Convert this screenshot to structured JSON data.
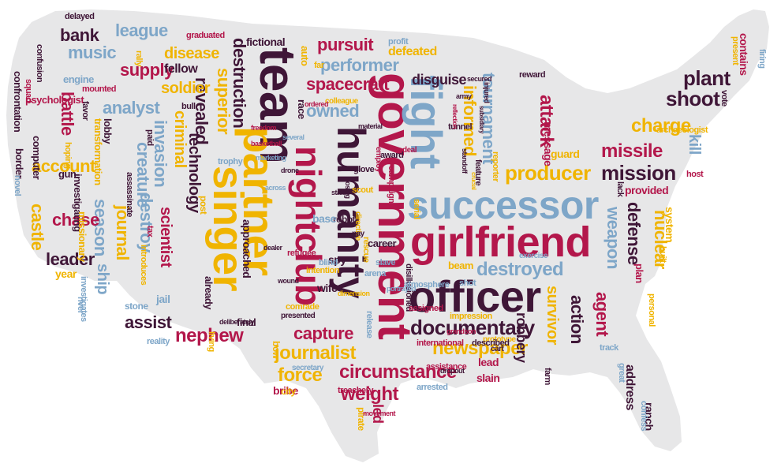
{
  "colors": {
    "background": "#ffffff",
    "map_fill": "#e7e7e8",
    "palette": {
      "crimson": "#b3174b",
      "blue": "#7ea6c8",
      "gold": "#f0b400",
      "plum": "#3f1637"
    }
  },
  "words": [
    {
      "text": "government",
      "color": "crimson"
    },
    {
      "text": "team",
      "color": "plum"
    },
    {
      "text": "fight",
      "color": "blue"
    },
    {
      "text": "partner",
      "color": "gold"
    },
    {
      "text": "successor",
      "color": "blue"
    },
    {
      "text": "girlfriend",
      "color": "crimson"
    },
    {
      "text": "officer",
      "color": "plum"
    },
    {
      "text": "singer",
      "color": "gold"
    },
    {
      "text": "humanity",
      "color": "plum"
    },
    {
      "text": "nightclub",
      "color": "crimson"
    },
    {
      "text": "documentary",
      "color": "plum"
    },
    {
      "text": "circumstance",
      "color": "crimson"
    },
    {
      "text": "newspaper",
      "color": "gold"
    },
    {
      "text": "journalist",
      "color": "gold"
    },
    {
      "text": "weight",
      "color": "crimson"
    },
    {
      "text": "force",
      "color": "gold"
    },
    {
      "text": "capture",
      "color": "crimson"
    },
    {
      "text": "nephew",
      "color": "crimson"
    },
    {
      "text": "assist",
      "color": "plum"
    },
    {
      "text": "destroyed",
      "color": "blue"
    },
    {
      "text": "mission",
      "color": "plum"
    },
    {
      "text": "producer",
      "color": "gold"
    },
    {
      "text": "charge",
      "color": "gold"
    },
    {
      "text": "missile",
      "color": "crimson"
    },
    {
      "text": "shoot",
      "color": "plum"
    },
    {
      "text": "plant",
      "color": "plum"
    },
    {
      "text": "attack",
      "color": "crimson"
    },
    {
      "text": "tournament",
      "color": "blue"
    },
    {
      "text": "informed",
      "color": "gold"
    },
    {
      "text": "owned",
      "color": "blue"
    },
    {
      "text": "spacecraft",
      "color": "crimson"
    },
    {
      "text": "performer",
      "color": "blue"
    },
    {
      "text": "pursuit",
      "color": "crimson"
    },
    {
      "text": "destruction",
      "color": "plum"
    },
    {
      "text": "superior",
      "color": "gold"
    },
    {
      "text": "revealed",
      "color": "plum"
    },
    {
      "text": "technology",
      "color": "plum"
    },
    {
      "text": "criminal",
      "color": "gold"
    },
    {
      "text": "invasion",
      "color": "blue"
    },
    {
      "text": "creature",
      "color": "blue"
    },
    {
      "text": "destroy",
      "color": "blue"
    },
    {
      "text": "scientist",
      "color": "crimson"
    },
    {
      "text": "journal",
      "color": "gold"
    },
    {
      "text": "season",
      "color": "blue"
    },
    {
      "text": "ship",
      "color": "blue"
    },
    {
      "text": "leader",
      "color": "plum"
    },
    {
      "text": "chase",
      "color": "crimson"
    },
    {
      "text": "castle",
      "color": "gold"
    },
    {
      "text": "account",
      "color": "gold"
    },
    {
      "text": "battle",
      "color": "crimson"
    },
    {
      "text": "analyst",
      "color": "blue"
    },
    {
      "text": "soldier",
      "color": "gold"
    },
    {
      "text": "supply",
      "color": "crimson"
    },
    {
      "text": "disease",
      "color": "gold"
    },
    {
      "text": "music",
      "color": "blue"
    },
    {
      "text": "league",
      "color": "blue"
    },
    {
      "text": "bank",
      "color": "plum"
    },
    {
      "text": "fellow",
      "color": "plum"
    },
    {
      "text": "defeated",
      "color": "gold"
    },
    {
      "text": "disguise",
      "color": "plum"
    },
    {
      "text": "weapon",
      "color": "blue"
    },
    {
      "text": "defense",
      "color": "plum"
    },
    {
      "text": "nuclear",
      "color": "gold"
    },
    {
      "text": "agent",
      "color": "crimson"
    },
    {
      "text": "action",
      "color": "plum"
    },
    {
      "text": "survivor",
      "color": "gold"
    },
    {
      "text": "robbery",
      "color": "plum"
    },
    {
      "text": "kill",
      "color": "blue"
    },
    {
      "text": "provided",
      "color": "crimson"
    },
    {
      "text": "system",
      "color": "gold"
    },
    {
      "text": "address",
      "color": "plum"
    },
    {
      "text": "ranch",
      "color": "plum"
    },
    {
      "text": "contains",
      "color": "crimson"
    },
    {
      "text": "slain",
      "color": "crimson"
    },
    {
      "text": "lead",
      "color": "crimson"
    },
    {
      "text": "led",
      "color": "crimson"
    },
    {
      "text": "bribe",
      "color": "crimson"
    },
    {
      "text": "approached",
      "color": "plum"
    },
    {
      "text": "fictional",
      "color": "plum"
    },
    {
      "text": "auto",
      "color": "gold"
    },
    {
      "text": "psychologist",
      "color": "crimson"
    },
    {
      "text": "confrontation",
      "color": "plum"
    },
    {
      "text": "computer",
      "color": "plum"
    },
    {
      "text": "border",
      "color": "plum"
    },
    {
      "text": "engine",
      "color": "blue"
    },
    {
      "text": "gun",
      "color": "plum"
    },
    {
      "text": "lobby",
      "color": "plum"
    },
    {
      "text": "investigating",
      "color": "plum"
    },
    {
      "text": "missionary",
      "color": "gold"
    },
    {
      "text": "transformation",
      "color": "gold"
    },
    {
      "text": "year",
      "color": "gold"
    },
    {
      "text": "stone",
      "color": "blue"
    },
    {
      "text": "jail",
      "color": "blue"
    },
    {
      "text": "already",
      "color": "plum"
    },
    {
      "text": "spy",
      "color": "plum"
    },
    {
      "text": "wife",
      "color": "plum"
    },
    {
      "text": "robot",
      "color": "plum"
    },
    {
      "text": "base",
      "color": "blue"
    },
    {
      "text": "career",
      "color": "plum"
    },
    {
      "text": "beam",
      "color": "gold"
    },
    {
      "text": "guard",
      "color": "gold"
    },
    {
      "text": "message",
      "color": "crimson"
    },
    {
      "text": "race",
      "color": "plum"
    },
    {
      "text": "post",
      "color": "gold"
    },
    {
      "text": "final",
      "color": "plum"
    },
    {
      "text": "bow",
      "color": "gold"
    },
    {
      "text": "city",
      "color": "gold"
    },
    {
      "text": "pirate",
      "color": "gold"
    },
    {
      "text": "arrested",
      "color": "blue"
    },
    {
      "text": "farm",
      "color": "plum"
    },
    {
      "text": "reward",
      "color": "plum"
    },
    {
      "text": "delayed",
      "color": "plum"
    },
    {
      "text": "graduated",
      "color": "crimson"
    },
    {
      "text": "profit",
      "color": "blue"
    },
    {
      "text": "favor",
      "color": "plum"
    },
    {
      "text": "hoping",
      "color": "gold"
    },
    {
      "text": "novel",
      "color": "blue"
    },
    {
      "text": "squad",
      "color": "crimson"
    },
    {
      "text": "confusion",
      "color": "plum"
    },
    {
      "text": "mounted",
      "color": "crimson"
    },
    {
      "text": "rally",
      "color": "gold"
    },
    {
      "text": "bull",
      "color": "plum"
    },
    {
      "text": "paid",
      "color": "plum"
    },
    {
      "text": "assassinate",
      "color": "plum"
    },
    {
      "text": "introduces",
      "color": "gold"
    },
    {
      "text": "tax",
      "color": "crimson"
    },
    {
      "text": "investigates",
      "color": "blue"
    },
    {
      "text": "river",
      "color": "blue"
    },
    {
      "text": "trophy",
      "color": "blue"
    },
    {
      "text": "colleague",
      "color": "gold"
    },
    {
      "text": "archaeologist",
      "color": "gold"
    },
    {
      "text": "vote",
      "color": "plum"
    },
    {
      "text": "host",
      "color": "crimson"
    },
    {
      "text": "present",
      "color": "gold"
    },
    {
      "text": "firing",
      "color": "blue"
    },
    {
      "text": "treachery",
      "color": "crimson"
    },
    {
      "text": "secretary",
      "color": "blue"
    },
    {
      "text": "assistance",
      "color": "crimson"
    },
    {
      "text": "cart",
      "color": "plum"
    },
    {
      "text": "prototype",
      "color": "gold"
    },
    {
      "text": "described",
      "color": "plum"
    },
    {
      "text": "international",
      "color": "crimson"
    },
    {
      "text": "track",
      "color": "blue"
    },
    {
      "text": "great",
      "color": "blue"
    },
    {
      "text": "confess",
      "color": "blue"
    },
    {
      "text": "exercise",
      "color": "blue"
    },
    {
      "text": "reporter",
      "color": "gold"
    },
    {
      "text": "feature",
      "color": "plum"
    },
    {
      "text": "standoff",
      "color": "plum"
    },
    {
      "text": "tunnel",
      "color": "plum"
    },
    {
      "text": "army",
      "color": "plum"
    },
    {
      "text": "deal",
      "color": "crimson"
    },
    {
      "text": "campaign",
      "color": "crimson"
    },
    {
      "text": "award",
      "color": "plum"
    },
    {
      "text": "scout",
      "color": "gold"
    },
    {
      "text": "glove",
      "color": "plum"
    },
    {
      "text": "employ",
      "color": "crimson"
    },
    {
      "text": "disillusioned",
      "color": "plum"
    },
    {
      "text": "slave",
      "color": "blue"
    },
    {
      "text": "arena",
      "color": "blue"
    },
    {
      "text": "atmosphere",
      "color": "blue"
    },
    {
      "text": "assigned",
      "color": "crimson"
    },
    {
      "text": "shot",
      "color": "blue"
    },
    {
      "text": "impression",
      "color": "gold"
    },
    {
      "text": "intention",
      "color": "gold"
    },
    {
      "text": "refugee",
      "color": "crimson"
    },
    {
      "text": "blind",
      "color": "blue"
    },
    {
      "text": "comrade",
      "color": "gold"
    },
    {
      "text": "presented",
      "color": "plum"
    },
    {
      "text": "wound",
      "color": "plum"
    },
    {
      "text": "movement",
      "color": "crimson"
    },
    {
      "text": "release",
      "color": "blue"
    },
    {
      "text": "rescue",
      "color": "gold"
    },
    {
      "text": "reality",
      "color": "blue"
    },
    {
      "text": "living",
      "color": "gold"
    },
    {
      "text": "deliberately",
      "color": "plum"
    },
    {
      "text": "far",
      "color": "gold"
    },
    {
      "text": "freedom",
      "color": "crimson"
    },
    {
      "text": "basketball",
      "color": "crimson"
    },
    {
      "text": "marketing",
      "color": "blue"
    },
    {
      "text": "drone",
      "color": "plum"
    },
    {
      "text": "several",
      "color": "blue"
    },
    {
      "text": "across",
      "color": "blue"
    },
    {
      "text": "statue",
      "color": "plum"
    },
    {
      "text": "losing",
      "color": "plum"
    },
    {
      "text": "directive",
      "color": "gold"
    },
    {
      "text": "pay",
      "color": "plum"
    },
    {
      "text": "portrayed",
      "color": "blue"
    },
    {
      "text": "dimension",
      "color": "gold"
    },
    {
      "text": "serial",
      "color": "gold"
    },
    {
      "text": "dealer",
      "color": "plum"
    },
    {
      "text": "ordered",
      "color": "crimson"
    },
    {
      "text": "material",
      "color": "plum"
    },
    {
      "text": "injured",
      "color": "plum"
    },
    {
      "text": "secured",
      "color": "plum"
    },
    {
      "text": "subsidiary",
      "color": "plum"
    },
    {
      "text": "reflection",
      "color": "crimson"
    },
    {
      "text": "grandson",
      "color": "crimson"
    },
    {
      "text": "personal",
      "color": "gold"
    },
    {
      "text": "lack",
      "color": "plum"
    },
    {
      "text": "built",
      "color": "gold"
    },
    {
      "text": "plan",
      "color": "crimson"
    },
    {
      "text": "crucial",
      "color": "gold"
    },
    {
      "text": "dropout",
      "color": "plum"
    }
  ]
}
